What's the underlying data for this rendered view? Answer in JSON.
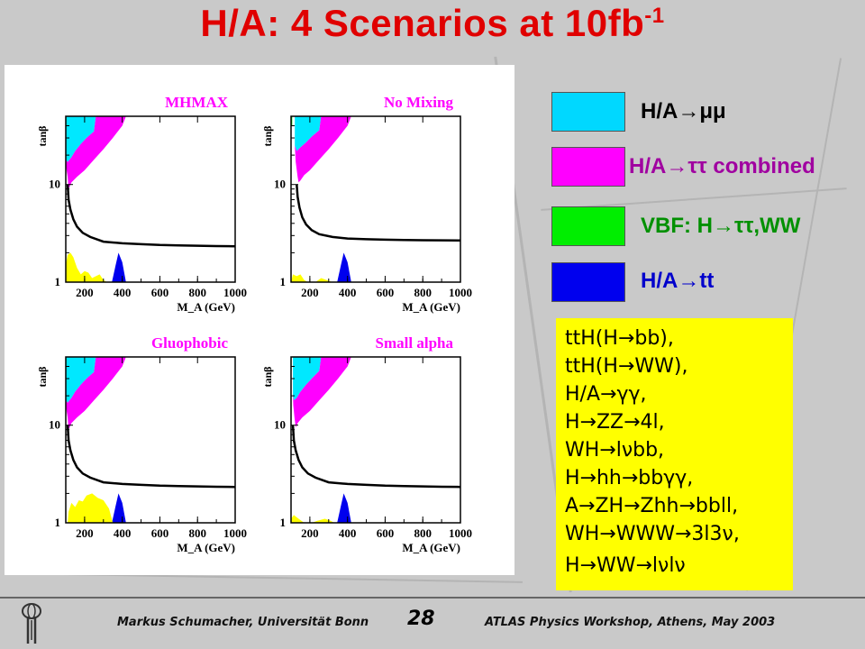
{
  "slide": {
    "title": "H/A: 4 Scenarios at 10fb",
    "title_sup": "-1",
    "colors": {
      "title": "#e00000",
      "cyan": "#00e0ff",
      "magenta": "#ff00ff",
      "green": "#00e000",
      "blue": "#0000e0",
      "yellow": "#ffff00"
    }
  },
  "legend": [
    {
      "key": "mumu",
      "label": "H/A→μμ",
      "color": "#00d8ff",
      "text_color": "#000000"
    },
    {
      "key": "tautau",
      "label": "H/A→ττ combined",
      "color": "#ff00ff",
      "text_color": "#a000a0"
    },
    {
      "key": "vbf",
      "label": "VBF: H→ττ,WW",
      "color": "#00ee00",
      "text_color": "#009000"
    },
    {
      "key": "tt",
      "label": "H/A→tt",
      "color": "#0000ee",
      "text_color": "#0000cc"
    }
  ],
  "yellow_box": {
    "lines": [
      "ttH(H→bb),",
      "ttH(H→WW),",
      "H/A→γγ,",
      "H→ZZ→4l,",
      "WH→lνbb,",
      "H→hh→bbγγ,",
      "A→ZH→Zhh→bbll,",
      "WH→WWW→3l3ν,",
      "H→WW→lνlν"
    ]
  },
  "footer": {
    "left": "Markus Schumacher, Universität Bonn",
    "page": "28",
    "right": "ATLAS Physics Workshop, Athens, May 2003"
  },
  "chart_data": [
    {
      "type": "area",
      "title": "MHMAX",
      "xlabel": "M_A (GeV)",
      "ylabel": "tanβ",
      "xlim": [
        100,
        1000
      ],
      "ylim": [
        1,
        50
      ],
      "y_scale": "log",
      "x_ticks": [
        200,
        400,
        600,
        800,
        1000
      ],
      "y_ticks": [
        1,
        10
      ],
      "regions": [
        {
          "name": "H/A→μμ",
          "color": "#00e8ff",
          "points": [
            [
              100,
              50
            ],
            [
              260,
              50
            ],
            [
              250,
              35
            ],
            [
              210,
              30
            ],
            [
              180,
              26
            ],
            [
              150,
              22
            ],
            [
              130,
              19
            ],
            [
              110,
              17
            ],
            [
              100,
              18
            ]
          ]
        },
        {
          "name": "H/A→ττ combined",
          "color": "#ff00ff",
          "points": [
            [
              100,
              18
            ],
            [
              110,
              17
            ],
            [
              130,
              19
            ],
            [
              150,
              22
            ],
            [
              180,
              26
            ],
            [
              210,
              30
            ],
            [
              250,
              35
            ],
            [
              260,
              50
            ],
            [
              420,
              50
            ],
            [
              400,
              40
            ],
            [
              350,
              30
            ],
            [
              300,
              23
            ],
            [
              250,
              18
            ],
            [
              200,
              14
            ],
            [
              160,
              12
            ],
            [
              130,
              10.5
            ],
            [
              115,
              9
            ],
            [
              110,
              12
            ],
            [
              102,
              15
            ]
          ]
        },
        {
          "name": "VBF: H→ττ,WW",
          "color": "#00e000",
          "points": [
            [
              95,
              50
            ],
            [
              103,
              50
            ],
            [
              103,
              38
            ],
            [
              95,
              38
            ]
          ]
        },
        {
          "name": "H/A→tt",
          "color": "#0000ee",
          "points": [
            [
              345,
              1
            ],
            [
              365,
              1.5
            ],
            [
              380,
              2
            ],
            [
              400,
              1.6
            ],
            [
              420,
              1
            ]
          ]
        },
        {
          "name": "other channels",
          "color": "#ffff00",
          "points": [
            [
              95,
              1
            ],
            [
              100,
              1.5
            ],
            [
              110,
              1.9
            ],
            [
              125,
              2
            ],
            [
              140,
              1.8
            ],
            [
              160,
              1.4
            ],
            [
              180,
              1.2
            ],
            [
              200,
              1.3
            ],
            [
              220,
              1.25
            ],
            [
              240,
              1.1
            ],
            [
              260,
              1.15
            ],
            [
              280,
              1.2
            ],
            [
              300,
              1.05
            ],
            [
              320,
              1
            ]
          ]
        }
      ],
      "lep_curve": {
        "x": [
          110,
          115,
          125,
          140,
          160,
          190,
          230,
          300,
          400,
          500,
          600,
          700,
          800,
          900,
          1000
        ],
        "y": [
          10,
          7,
          5.5,
          4.4,
          3.7,
          3.2,
          2.9,
          2.6,
          2.5,
          2.45,
          2.4,
          2.38,
          2.36,
          2.34,
          2.33
        ]
      }
    },
    {
      "type": "area",
      "title": "No Mixing",
      "xlabel": "M_A (GeV)",
      "ylabel": "tanβ",
      "xlim": [
        100,
        1000
      ],
      "ylim": [
        1,
        50
      ],
      "y_scale": "log",
      "x_ticks": [
        200,
        400,
        600,
        800,
        1000
      ],
      "y_ticks": [
        1,
        10
      ],
      "regions": [
        {
          "name": "H/A→μμ",
          "color": "#00e8ff",
          "points": [
            [
              120,
              50
            ],
            [
              260,
              50
            ],
            [
              250,
              36
            ],
            [
              210,
              31
            ],
            [
              180,
              27
            ],
            [
              150,
              24
            ],
            [
              130,
              22
            ],
            [
              120,
              25
            ]
          ]
        },
        {
          "name": "H/A→ττ combined",
          "color": "#ff00ff",
          "points": [
            [
              120,
              25
            ],
            [
              130,
              22
            ],
            [
              150,
              24
            ],
            [
              180,
              27
            ],
            [
              210,
              31
            ],
            [
              250,
              36
            ],
            [
              260,
              50
            ],
            [
              420,
              50
            ],
            [
              400,
              40
            ],
            [
              350,
              30
            ],
            [
              300,
              23
            ],
            [
              250,
              18
            ],
            [
              200,
              14
            ],
            [
              170,
              12.5
            ],
            [
              150,
              11
            ],
            [
              140,
              10.5
            ],
            [
              135,
              12
            ],
            [
              125,
              17
            ]
          ]
        },
        {
          "name": "VBF: H→ττ,WW",
          "color": "#00e000",
          "points": [
            [
              100,
              50
            ],
            [
              106,
              50
            ],
            [
              106,
              40
            ],
            [
              100,
              40
            ]
          ]
        },
        {
          "name": "H/A→tt",
          "color": "#0000ee",
          "points": [
            [
              345,
              1
            ],
            [
              365,
              1.5
            ],
            [
              380,
              2
            ],
            [
              400,
              1.6
            ],
            [
              420,
              1
            ]
          ]
        },
        {
          "name": "other channels",
          "color": "#ffff00",
          "points": [
            [
              100,
              1
            ],
            [
              110,
              1.2
            ],
            [
              130,
              1.15
            ],
            [
              150,
              1.2
            ],
            [
              170,
              1.05
            ],
            [
              190,
              1
            ],
            [
              230,
              1
            ],
            [
              260,
              1.1
            ],
            [
              290,
              1.05
            ],
            [
              320,
              1
            ]
          ]
        }
      ],
      "lep_curve": {
        "x": [
          130,
          135,
          145,
          160,
          180,
          210,
          250,
          320,
          400,
          500,
          600,
          700,
          800,
          900,
          1000
        ],
        "y": [
          10,
          7.5,
          5.8,
          4.6,
          3.9,
          3.4,
          3.1,
          2.9,
          2.8,
          2.75,
          2.72,
          2.7,
          2.69,
          2.68,
          2.67
        ]
      }
    },
    {
      "type": "area",
      "title": "Gluophobic",
      "xlabel": "M_A (GeV)",
      "ylabel": "tanβ",
      "xlim": [
        100,
        1000
      ],
      "ylim": [
        1,
        50
      ],
      "y_scale": "log",
      "x_ticks": [
        200,
        400,
        600,
        800,
        1000
      ],
      "y_ticks": [
        1,
        10
      ],
      "regions": [
        {
          "name": "H/A→μμ",
          "color": "#00e8ff",
          "points": [
            [
              100,
              50
            ],
            [
              260,
              50
            ],
            [
              250,
              35
            ],
            [
              210,
              30
            ],
            [
              180,
              26
            ],
            [
              150,
              22
            ],
            [
              130,
              19
            ],
            [
              110,
              17
            ],
            [
              100,
              18
            ]
          ]
        },
        {
          "name": "H/A→ττ combined",
          "color": "#ff00ff",
          "points": [
            [
              100,
              18
            ],
            [
              110,
              17
            ],
            [
              130,
              19
            ],
            [
              150,
              22
            ],
            [
              180,
              26
            ],
            [
              210,
              30
            ],
            [
              250,
              35
            ],
            [
              260,
              50
            ],
            [
              420,
              50
            ],
            [
              400,
              40
            ],
            [
              350,
              30
            ],
            [
              300,
              23
            ],
            [
              250,
              18
            ],
            [
              200,
              14
            ],
            [
              160,
              12
            ],
            [
              130,
              10.5
            ],
            [
              115,
              9
            ],
            [
              110,
              12
            ],
            [
              102,
              15
            ]
          ]
        },
        {
          "name": "VBF: H→ττ,WW",
          "color": "#00e000",
          "points": [
            [
              95,
              50
            ],
            [
              103,
              50
            ],
            [
              103,
              38
            ],
            [
              95,
              38
            ]
          ]
        },
        {
          "name": "H/A→tt",
          "color": "#0000ee",
          "points": [
            [
              345,
              1
            ],
            [
              365,
              1.5
            ],
            [
              380,
              2
            ],
            [
              400,
              1.6
            ],
            [
              420,
              1
            ]
          ]
        },
        {
          "name": "other channels",
          "color": "#ffff00",
          "points": [
            [
              110,
              1
            ],
            [
              115,
              1.3
            ],
            [
              130,
              1.6
            ],
            [
              150,
              1.45
            ],
            [
              170,
              1.7
            ],
            [
              190,
              1.65
            ],
            [
              210,
              1.9
            ],
            [
              240,
              2
            ],
            [
              270,
              1.8
            ],
            [
              300,
              1.7
            ],
            [
              330,
              1.4
            ],
            [
              350,
              1
            ]
          ]
        }
      ],
      "lep_curve": {
        "x": [
          110,
          115,
          125,
          140,
          160,
          190,
          230,
          300,
          400,
          500,
          600,
          700,
          800,
          900,
          1000
        ],
        "y": [
          10,
          7,
          5.5,
          4.4,
          3.7,
          3.2,
          2.9,
          2.6,
          2.5,
          2.45,
          2.4,
          2.38,
          2.36,
          2.34,
          2.33
        ]
      }
    },
    {
      "type": "area",
      "title": "Small alpha",
      "xlabel": "M_A (GeV)",
      "ylabel": "tanβ",
      "xlim": [
        100,
        1000
      ],
      "ylim": [
        1,
        50
      ],
      "y_scale": "log",
      "x_ticks": [
        200,
        400,
        600,
        800,
        1000
      ],
      "y_ticks": [
        1,
        10
      ],
      "regions": [
        {
          "name": "H/A→μμ",
          "color": "#00e8ff",
          "points": [
            [
              110,
              50
            ],
            [
              260,
              50
            ],
            [
              250,
              36
            ],
            [
              210,
              30
            ],
            [
              180,
              26
            ],
            [
              150,
              22
            ],
            [
              130,
              19
            ],
            [
              115,
              18
            ],
            [
              110,
              20
            ]
          ]
        },
        {
          "name": "H/A→ττ combined",
          "color": "#ff00ff",
          "points": [
            [
              110,
              20
            ],
            [
              115,
              18
            ],
            [
              130,
              19
            ],
            [
              150,
              22
            ],
            [
              180,
              26
            ],
            [
              210,
              30
            ],
            [
              250,
              36
            ],
            [
              260,
              50
            ],
            [
              420,
              50
            ],
            [
              400,
              40
            ],
            [
              350,
              30
            ],
            [
              300,
              23
            ],
            [
              250,
              18
            ],
            [
              200,
              14
            ],
            [
              160,
              12
            ],
            [
              135,
              10.5
            ],
            [
              125,
              9.5
            ],
            [
              118,
              12
            ],
            [
              112,
              16
            ]
          ]
        },
        {
          "name": "VBF: H→ττ,WW",
          "color": "#00e000",
          "points": [
            [
              95,
              50
            ],
            [
              103,
              50
            ],
            [
              103,
              36
            ],
            [
              95,
              36
            ]
          ]
        },
        {
          "name": "H/A→tt",
          "color": "#0000ee",
          "points": [
            [
              345,
              1
            ],
            [
              365,
              1.5
            ],
            [
              380,
              2
            ],
            [
              400,
              1.6
            ],
            [
              420,
              1
            ]
          ]
        },
        {
          "name": "other channels",
          "color": "#ffff00",
          "points": [
            [
              95,
              1
            ],
            [
              100,
              1.1
            ],
            [
              115,
              1.2
            ],
            [
              140,
              1.1
            ],
            [
              170,
              1
            ],
            [
              210,
              1
            ],
            [
              240,
              1.05
            ],
            [
              280,
              1.1
            ],
            [
              310,
              1.05
            ],
            [
              330,
              1
            ]
          ]
        }
      ],
      "lep_curve": {
        "x": [
          110,
          115,
          125,
          140,
          160,
          190,
          230,
          300,
          400,
          500,
          600,
          700,
          800,
          900,
          1000
        ],
        "y": [
          10,
          7,
          5.5,
          4.4,
          3.7,
          3.2,
          2.9,
          2.6,
          2.5,
          2.45,
          2.4,
          2.38,
          2.36,
          2.34,
          2.33
        ]
      }
    }
  ]
}
